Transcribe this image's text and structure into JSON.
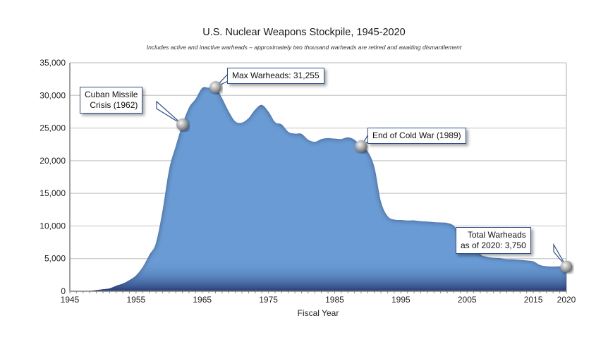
{
  "header": {
    "title": "U.S. Nuclear Weapons Stockpile, 1945-2020",
    "subtitle": "Includes active and inactive warheads – approximately two thousand warheads are retired and awaiting dismantlement"
  },
  "callouts": {
    "cuban": {
      "line1": "Cuban Missile",
      "line2": "Crisis (1962)"
    },
    "max": {
      "text": "Max Warheads: 31,255"
    },
    "coldwar": {
      "text": "End of Cold War (1989)"
    },
    "total": {
      "line1": "Total Warheads",
      "line2": "as of 2020: 3,750"
    }
  },
  "colors": {
    "fill_light": "#6a9bd4",
    "fill_dark": "#1f2f6a",
    "grid": "#c8c8c8",
    "callout_border": "#2f4f8f"
  },
  "chart_data": {
    "type": "area",
    "title": "U.S. Nuclear Weapons Stockpile, 1945-2020",
    "subtitle": "Includes active and inactive warheads – approximately two thousand warheads are retired and awaiting dismantlement",
    "xlabel": "Fiscal Year",
    "ylabel": "",
    "xlim": [
      1945,
      2020
    ],
    "ylim": [
      0,
      35000
    ],
    "grid": true,
    "legend": "none",
    "x_ticks": [
      "1945",
      "1955",
      "1965",
      "1975",
      "1985",
      "1995",
      "2005",
      "2015",
      "2020"
    ],
    "y_ticks": [
      "0",
      "5,000",
      "10,000",
      "15,000",
      "20,000",
      "25,000",
      "30,000",
      "35,000"
    ],
    "x": [
      1945,
      1946,
      1947,
      1948,
      1949,
      1950,
      1951,
      1952,
      1953,
      1954,
      1955,
      1956,
      1957,
      1958,
      1959,
      1960,
      1961,
      1962,
      1963,
      1964,
      1965,
      1966,
      1967,
      1968,
      1969,
      1970,
      1971,
      1972,
      1973,
      1974,
      1975,
      1976,
      1977,
      1978,
      1979,
      1980,
      1981,
      1982,
      1983,
      1984,
      1985,
      1986,
      1987,
      1988,
      1989,
      1990,
      1991,
      1992,
      1993,
      1994,
      1995,
      1996,
      1997,
      1998,
      1999,
      2000,
      2001,
      2002,
      2003,
      2004,
      2005,
      2006,
      2007,
      2008,
      2009,
      2010,
      2011,
      2012,
      2013,
      2014,
      2015,
      2016,
      2017,
      2018,
      2019,
      2020
    ],
    "series": [
      {
        "name": "Warheads",
        "values": [
          2,
          9,
          13,
          50,
          170,
          299,
          438,
          841,
          1169,
          1703,
          2422,
          3692,
          5543,
          7345,
          12298,
          18638,
          22229,
          25540,
          28133,
          29463,
          31139,
          31175,
          31255,
          29561,
          27552,
          26008,
          25830,
          26516,
          27835,
          28537,
          27519,
          25914,
          25542,
          24418,
          24138,
          24104,
          23208,
          22886,
          23305,
          23459,
          23368,
          23317,
          23575,
          23205,
          22217,
          21392,
          19008,
          13708,
          11511,
          10979,
          10904,
          10827,
          10849,
          10731,
          10665,
          10577,
          10526,
          10457,
          10027,
          8570,
          8360,
          7853,
          5709,
          5273,
          5113,
          5066,
          4897,
          4881,
          4804,
          4717,
          4571,
          4018,
          3822,
          3785,
          3805,
          3750
        ]
      }
    ],
    "annotations": [
      {
        "label": "Cuban Missile Crisis (1962)",
        "x": 1962,
        "y": 25540
      },
      {
        "label": "Max Warheads: 31,255",
        "x": 1967,
        "y": 31255
      },
      {
        "label": "End of Cold War (1989)",
        "x": 1989,
        "y": 22217
      },
      {
        "label": "Total Warheads as of 2020: 3,750",
        "x": 2020,
        "y": 3750
      }
    ]
  }
}
